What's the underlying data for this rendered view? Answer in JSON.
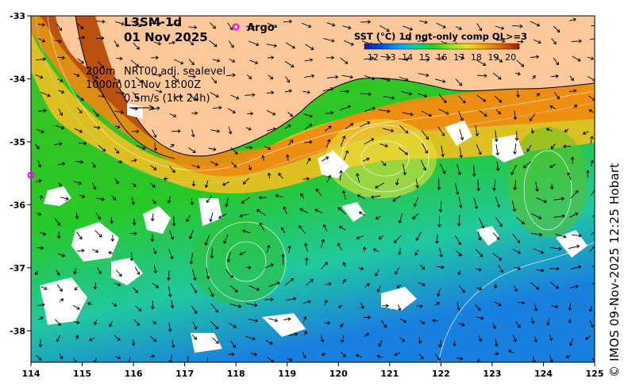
{
  "map": {
    "title": "L3SM-1d",
    "date": "01 Nov 2025",
    "argo_label": "Argo",
    "legend": {
      "title": "SST (°C) 1d ngt-only comp QL>=3",
      "ticks": [
        "12",
        "13",
        "14",
        "15",
        "16",
        "17",
        "18",
        "19",
        "20"
      ],
      "range": [
        11.5,
        20.5
      ],
      "colors": [
        "#1a1ab0",
        "#0050e0",
        "#00a0ff",
        "#00d0a0",
        "#20d020",
        "#90e020",
        "#f0e020",
        "#f0a000",
        "#e06000",
        "#a02000"
      ]
    },
    "annotations": {
      "contours": [
        "200m",
        "1000m"
      ],
      "sealevel": "NRT00 adj. sealevel",
      "sealevel_time": "01-Nov 18:00Z",
      "vector_scale": "0.5m/s (1kt 24h)"
    },
    "lon_ticks": [
      "114",
      "115",
      "116",
      "117",
      "118",
      "119",
      "120",
      "121",
      "122",
      "123",
      "124",
      "125"
    ],
    "lat_ticks": [
      "-33",
      "-34",
      "-35",
      "-36",
      "-37",
      "-38"
    ],
    "lon_range": [
      114,
      125
    ],
    "lat_range": [
      -38.5,
      -33
    ],
    "credit": "© IMOS 09-Nov-2025 12:25 Hobart",
    "colors": {
      "land": "#fcc89a",
      "argo": "#ff00ff",
      "frame": "#000000"
    }
  }
}
